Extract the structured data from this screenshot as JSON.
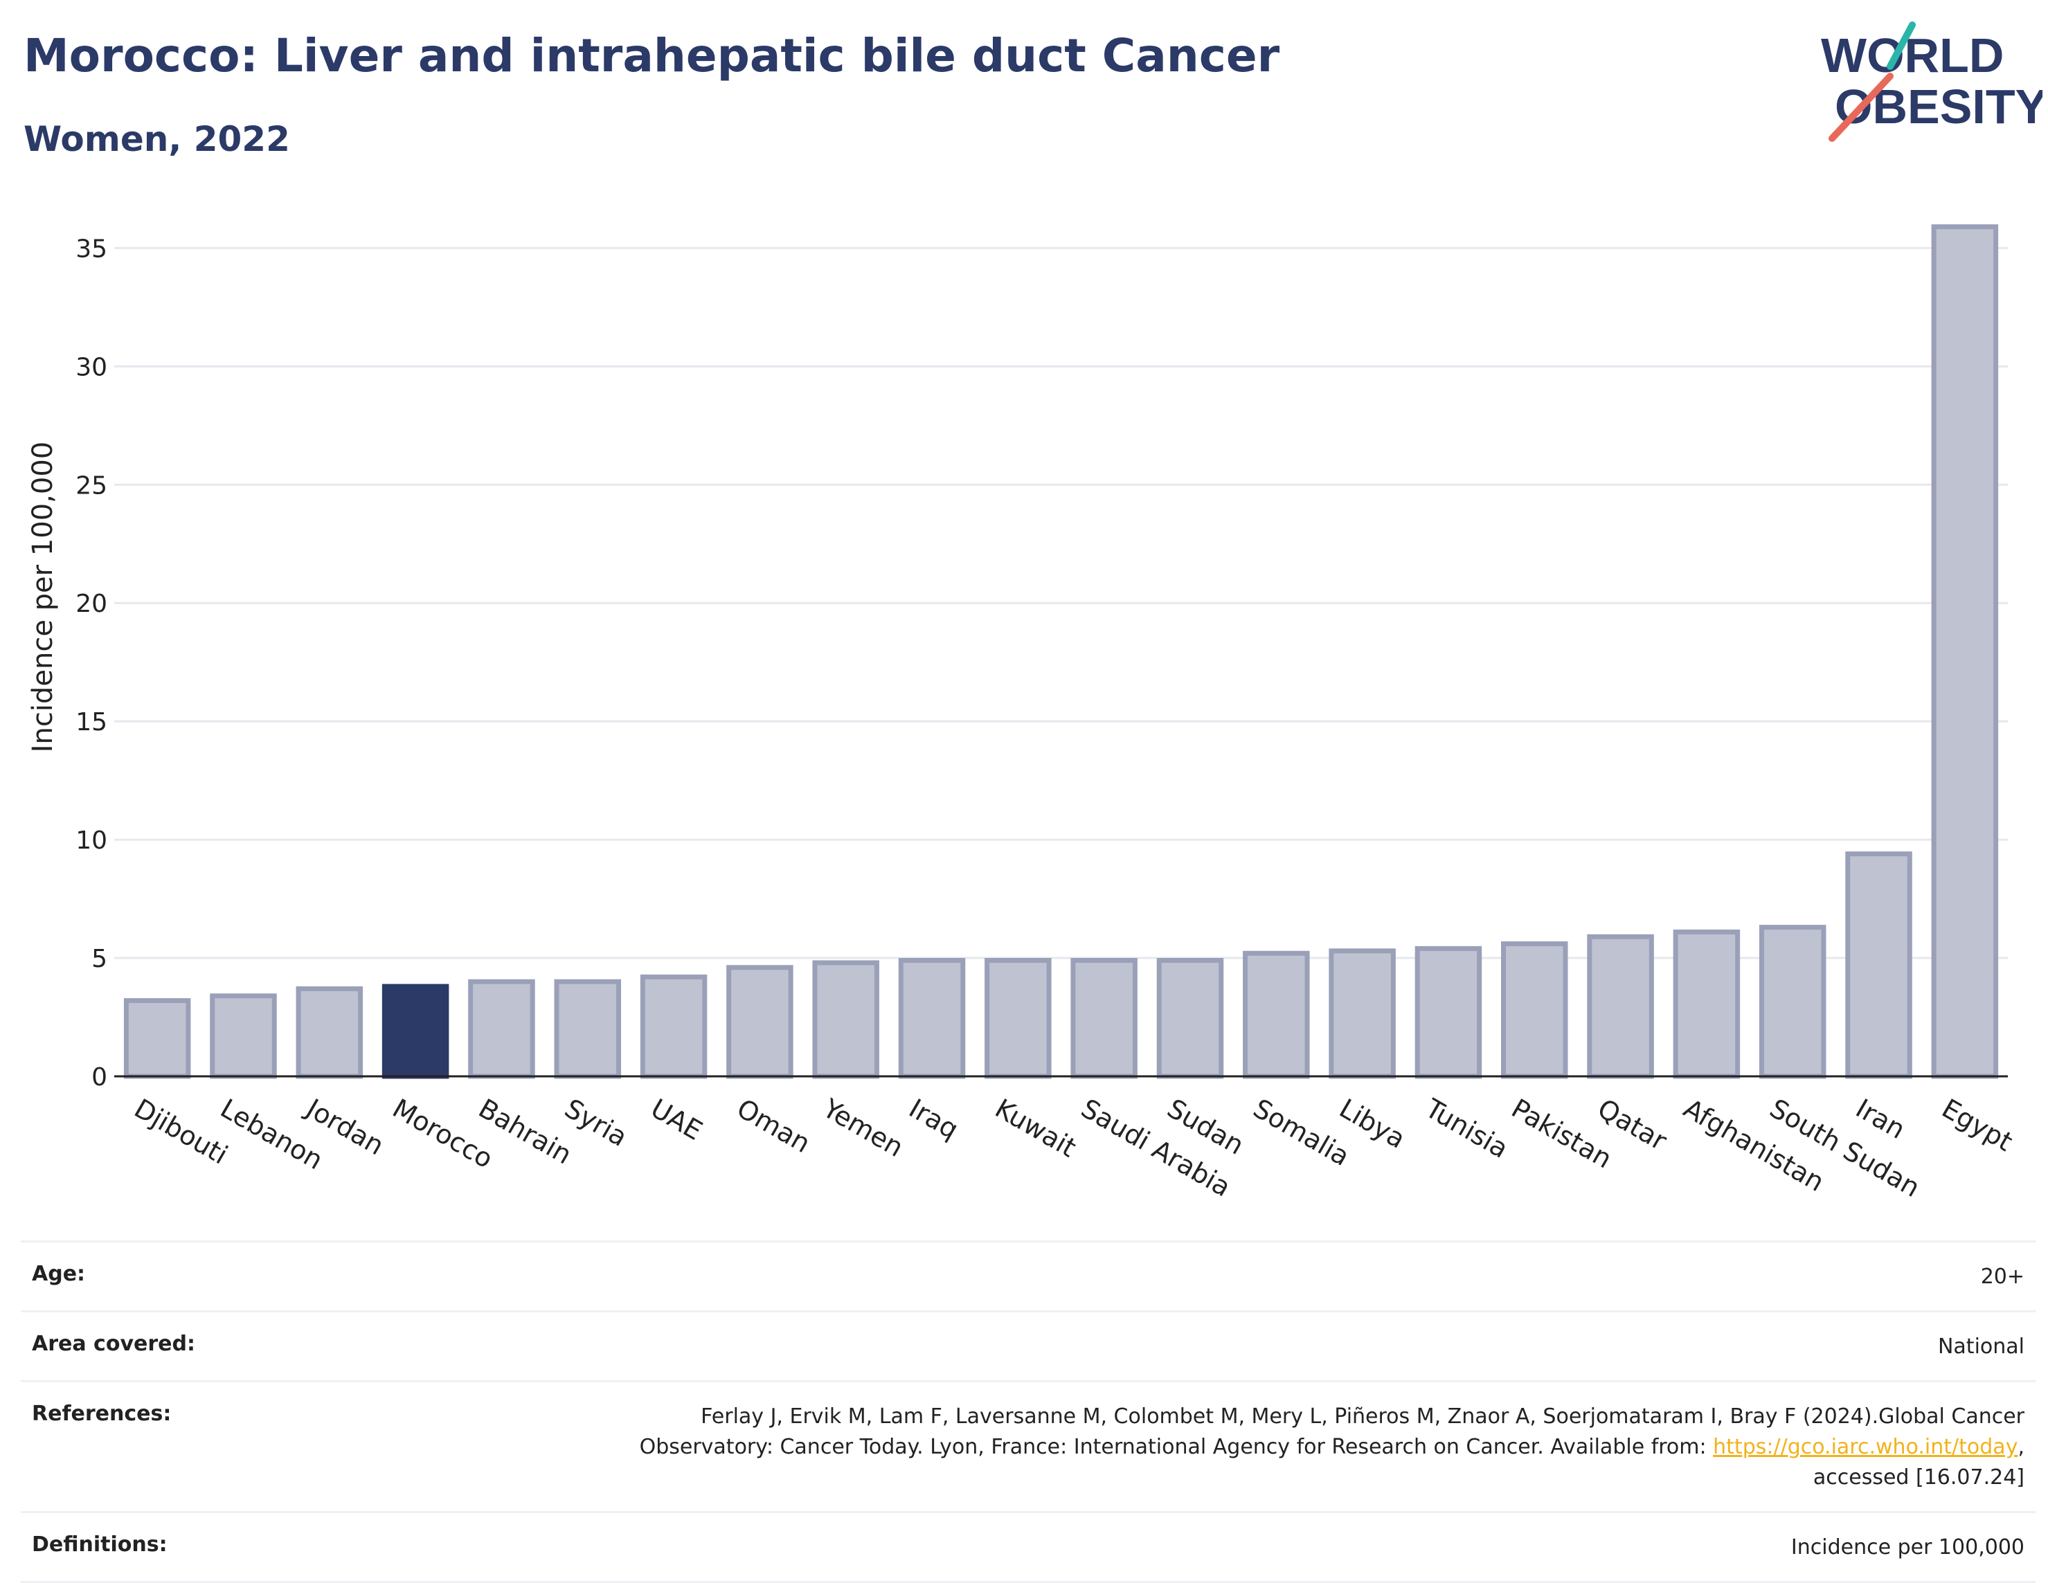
{
  "header": {
    "title": "Morocco: Liver and intrahepatic bile duct Cancer",
    "subtitle": "Women, 2022"
  },
  "logo": {
    "line1": "WORLD",
    "line2": "OBESITY"
  },
  "chart_data": {
    "type": "bar",
    "ylabel": "Incidence per 100,000",
    "ylim": [
      0,
      37
    ],
    "yticks": [
      0,
      5,
      10,
      15,
      20,
      25,
      30,
      35
    ],
    "grid": true,
    "highlight": "Morocco",
    "categories": [
      "Djibouti",
      "Lebanon",
      "Jordan",
      "Morocco",
      "Bahrain",
      "Syria",
      "UAE",
      "Oman",
      "Yemen",
      "Iraq",
      "Kuwait",
      "Saudi Arabia",
      "Sudan",
      "Somalia",
      "Libya",
      "Tunisia",
      "Pakistan",
      "Qatar",
      "Afghanistan",
      "South Sudan",
      "Iran",
      "Egypt"
    ],
    "values": [
      3.2,
      3.4,
      3.7,
      3.8,
      4.0,
      4.0,
      4.2,
      4.6,
      4.8,
      4.9,
      4.9,
      4.9,
      4.9,
      5.2,
      5.3,
      5.4,
      5.6,
      5.9,
      6.1,
      6.3,
      9.4,
      35.9
    ]
  },
  "colors": {
    "bar": "#bfc2d0",
    "bar_edge": "#9aa0b8",
    "highlight": "#2b3a67",
    "logo_text": "#2b3a67",
    "logo_teal": "#2bb5a8",
    "logo_coral": "#e8685a"
  },
  "meta": {
    "age_label": "Age:",
    "age_value": "20+",
    "area_label": "Area covered:",
    "area_value": "National",
    "references_label": "References:",
    "references_text_1": "Ferlay J, Ervik M, Lam F, Laversanne M, Colombet M, Mery L, Piñeros M, Znaor A, Soerjomataram I, Bray F (2024).Global Cancer",
    "references_text_2": "Observatory: Cancer Today. Lyon, France: International Agency for Research on Cancer. Available from: ",
    "references_link": "https://gco.iarc.who.int/today",
    "references_text_3": ",",
    "references_text_4": "accessed [16.07.24]",
    "definitions_label": "Definitions:",
    "definitions_value": "Incidence per 100,000"
  }
}
